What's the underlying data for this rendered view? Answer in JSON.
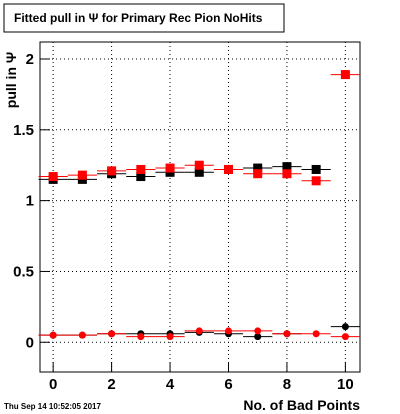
{
  "chart_data": {
    "type": "scatter",
    "title": "Fitted pull in Ψ  for Primary Rec Pion NoHits",
    "x_label": "No. of Bad Points",
    "y_label": "pull in Ψ",
    "timestamp": "Thu Sep 14 10:52:05 2017",
    "x": [
      0,
      1,
      2,
      3,
      4,
      5,
      6,
      7,
      8,
      9,
      10
    ],
    "series": [
      {
        "color": "#000000",
        "marker": "square",
        "values": [
          1.15,
          1.15,
          1.19,
          1.17,
          1.2,
          1.2,
          1.22,
          1.23,
          1.24,
          1.22,
          null
        ]
      },
      {
        "color": "#ff0000",
        "marker": "square",
        "values": [
          1.17,
          1.18,
          1.21,
          1.22,
          1.23,
          1.25,
          1.22,
          1.19,
          1.19,
          1.14,
          1.89
        ]
      },
      {
        "color": "#000000",
        "marker": "circle",
        "values": [
          0.05,
          0.05,
          0.06,
          0.06,
          0.06,
          0.07,
          0.06,
          0.04,
          0.06,
          null,
          0.11
        ]
      },
      {
        "color": "#ff0000",
        "marker": "circle",
        "values": [
          0.05,
          0.05,
          0.06,
          0.04,
          0.04,
          0.08,
          0.08,
          0.08,
          0.06,
          0.06,
          0.04
        ]
      }
    ],
    "xlim": [
      -0.45,
      10.5
    ],
    "ylim": [
      -0.21,
      2.12
    ],
    "xticks": [
      0,
      2,
      4,
      6,
      8,
      10
    ],
    "yticks": [
      0,
      0.5,
      1,
      1.5,
      2
    ],
    "grid": true
  }
}
